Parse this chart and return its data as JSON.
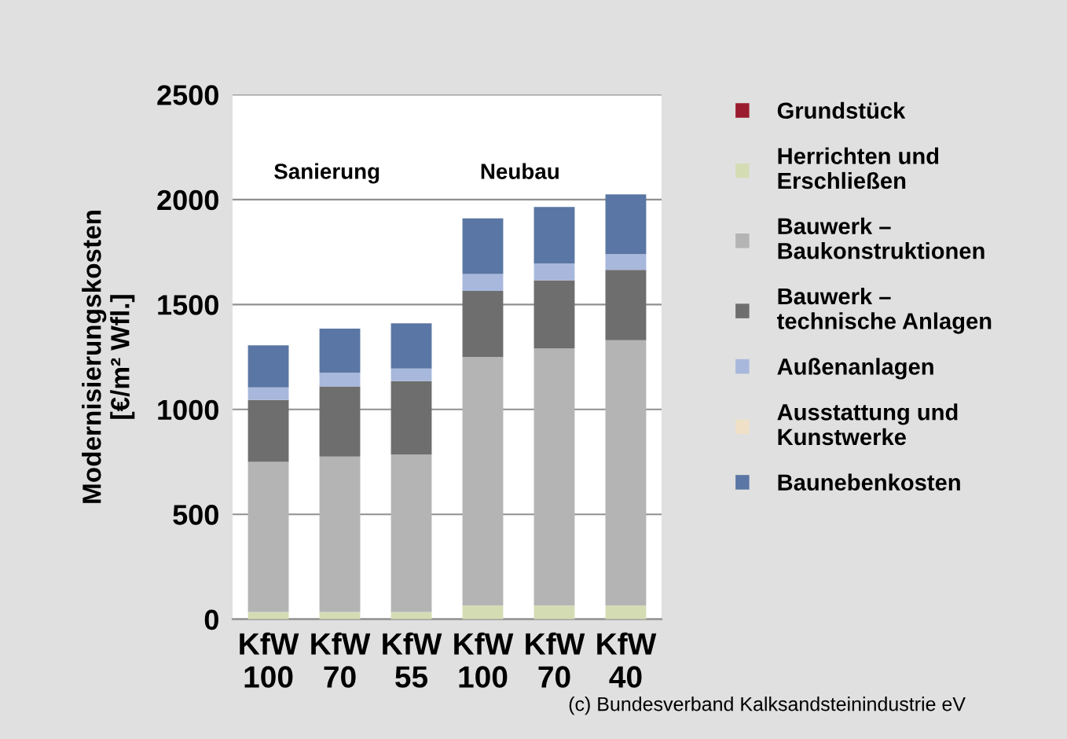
{
  "chart_data": {
    "type": "bar",
    "stacked": true,
    "categories": [
      "KfW\n100",
      "KfW\n70",
      "KfW\n55",
      "KfW\n100",
      "KfW\n70",
      "KfW\n40"
    ],
    "ylabel": "Modernisierungskosten\n[€/m² Wfl.]",
    "ylim": [
      0,
      2500
    ],
    "yticks": [
      0,
      500,
      1000,
      1500,
      2000,
      2500
    ],
    "grid": "y",
    "legend": "right",
    "series": [
      {
        "name": "Grundstück",
        "color": "#9b1c2e",
        "values": [
          0,
          0,
          0,
          0,
          0,
          0
        ]
      },
      {
        "name": "Herrichten und\nErschließen",
        "color": "#d4dcb4",
        "values": [
          35,
          35,
          35,
          65,
          65,
          65
        ]
      },
      {
        "name": "Bauwerk –\nBaukonstruktionen",
        "color": "#b4b4b4",
        "values": [
          715,
          740,
          750,
          1185,
          1225,
          1265
        ]
      },
      {
        "name": "Bauwerk –\ntechnische Anlagen",
        "color": "#6e6e6e",
        "values": [
          295,
          335,
          350,
          315,
          325,
          335
        ]
      },
      {
        "name": "Außenanlagen",
        "color": "#a8b8dc",
        "values": [
          60,
          65,
          60,
          80,
          80,
          75
        ]
      },
      {
        "name": "Ausstattung und\nKunstwerke",
        "color": "#f0e0c8",
        "values": [
          0,
          0,
          0,
          0,
          0,
          0
        ]
      },
      {
        "name": "Baunebenkosten",
        "color": "#5a76a4",
        "values": [
          200,
          210,
          215,
          265,
          270,
          285
        ]
      }
    ],
    "annotations": [
      "Sanierung",
      "Neubau",
      "(c) Bundesverband Kalksandsteinindustrie eV"
    ]
  }
}
